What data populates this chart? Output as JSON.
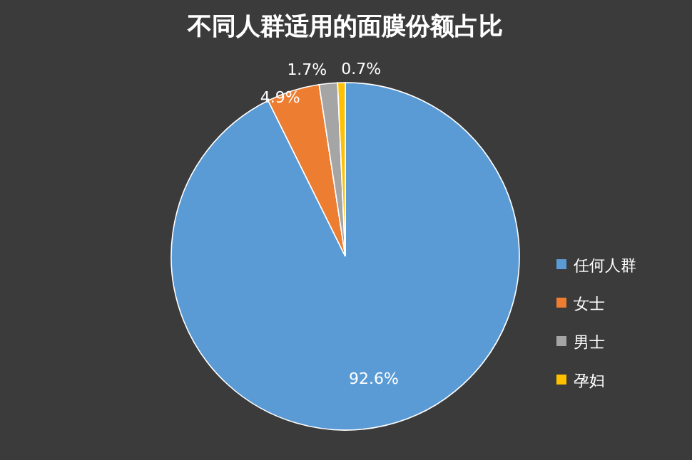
{
  "chart_data": {
    "type": "pie",
    "title": "不同人群适用的面膜份额占比",
    "categories": [
      "任何人群",
      "女士",
      "男士",
      "孕妇"
    ],
    "values": [
      92.6,
      4.9,
      1.7,
      0.7
    ],
    "colors": [
      "#5b9bd5",
      "#ed7d31",
      "#a5a5a5",
      "#ffc000"
    ],
    "value_labels": [
      "92.6%",
      "4.9%",
      "1.7%",
      "0.7%"
    ],
    "legend": "right"
  }
}
